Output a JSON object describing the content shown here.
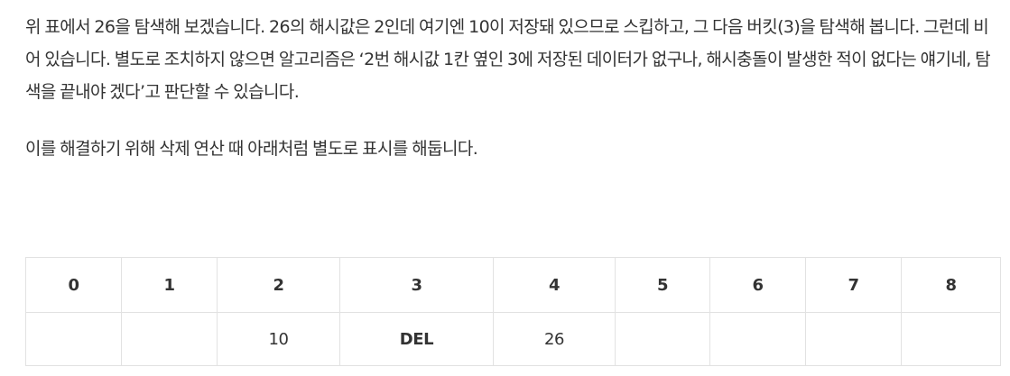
{
  "paragraphs": [
    "위 표에서 26을 탐색해 보겠습니다. 26의 해시값은 2인데 여기엔 10이 저장돼 있으므로 스킵하고, 그 다음 버킷(3)을 탐색해 봅니다. 그런데 비어 있습니다. 별도로 조치하지 않으면 알고리즘은 ‘2번 해시값 1칸 옆인 3에 저장된 데이터가 없구나, 해시충돌이 발생한 적이 없다는 얘기네, 탐색을 끝내야 겠다’고 판단할 수 있습니다.",
    "이를 해결하기 위해 삭제 연산 때 아래처럼 별도로 표시를 해둡니다."
  ],
  "table": {
    "headers": [
      "0",
      "1",
      "2",
      "3",
      "4",
      "5",
      "6",
      "7",
      "8"
    ],
    "cells": [
      "",
      "",
      "10",
      "DEL",
      "26",
      "",
      "",
      "",
      ""
    ]
  }
}
